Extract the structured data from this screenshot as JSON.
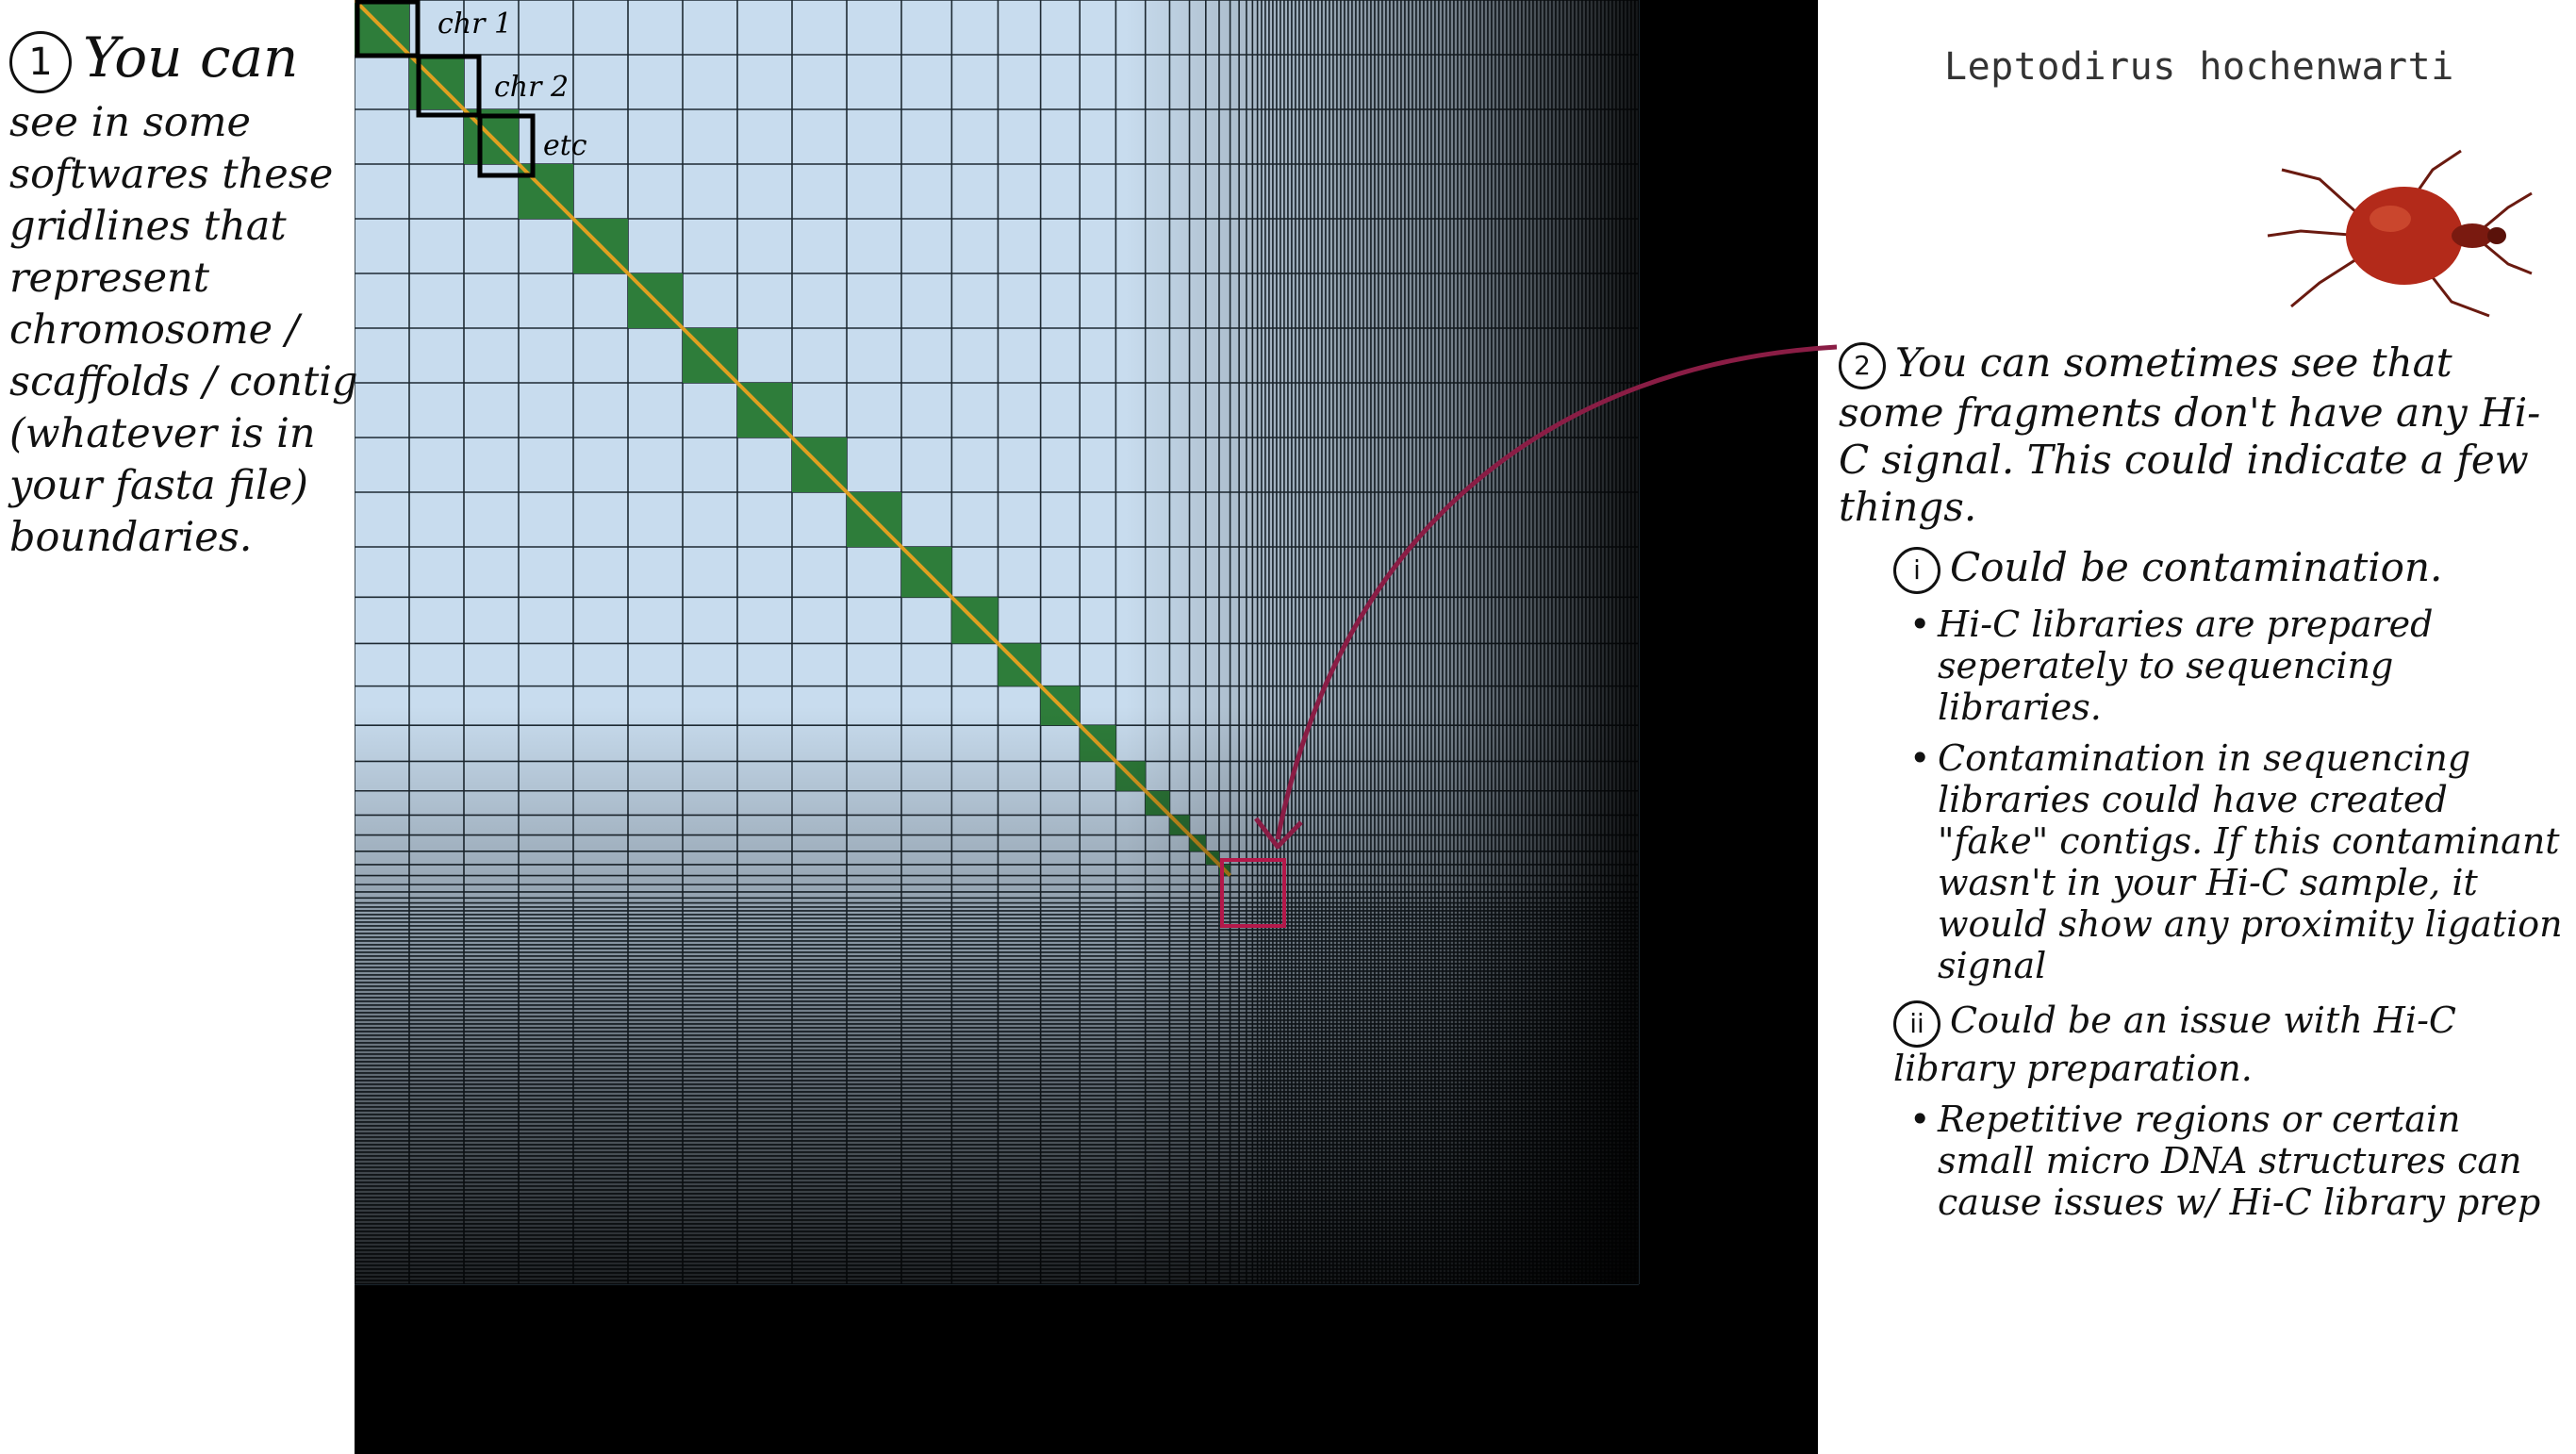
{
  "labels": {
    "chr1": "chr 1",
    "chr2": "chr 2",
    "etc": "etc"
  },
  "species_name": "Leptodirus hochenwarti",
  "note_left": {
    "number": "1",
    "title": "You can",
    "body": "see in some softwares these gridlines that represent chromosome / scaffolds / contig (whatever is in your fasta file) boundaries."
  },
  "note_right": {
    "number": "2",
    "intro": "You can sometimes see that some fragments don't have any Hi-C signal. This could indicate a few things.",
    "reasons": [
      {
        "number": "i",
        "title": "Could be contamination.",
        "bullets": [
          "Hi-C libraries are prepared seperately to sequencing libraries.",
          "Contamination in sequencing libraries could have created \"fake\" contigs. If this contaminant wasn't in your Hi-C sample, it would show any proximity ligation signal"
        ]
      },
      {
        "number": "ii",
        "title": "Could be an issue with Hi-C library preparation.",
        "bullets": [
          "Repetitive regions or certain small micro DNA structures can cause issues w/ Hi-C library prep"
        ]
      }
    ]
  },
  "colors": {
    "map_background": "#c8dcee",
    "grid_line": "#1e2a33",
    "diagonal_block": "#2e7d3a",
    "diagonal_hot": "#e0a020",
    "highlight_box": "#b4184a",
    "arrow": "#8a1d45",
    "beetle_body": "#b32a1a"
  }
}
